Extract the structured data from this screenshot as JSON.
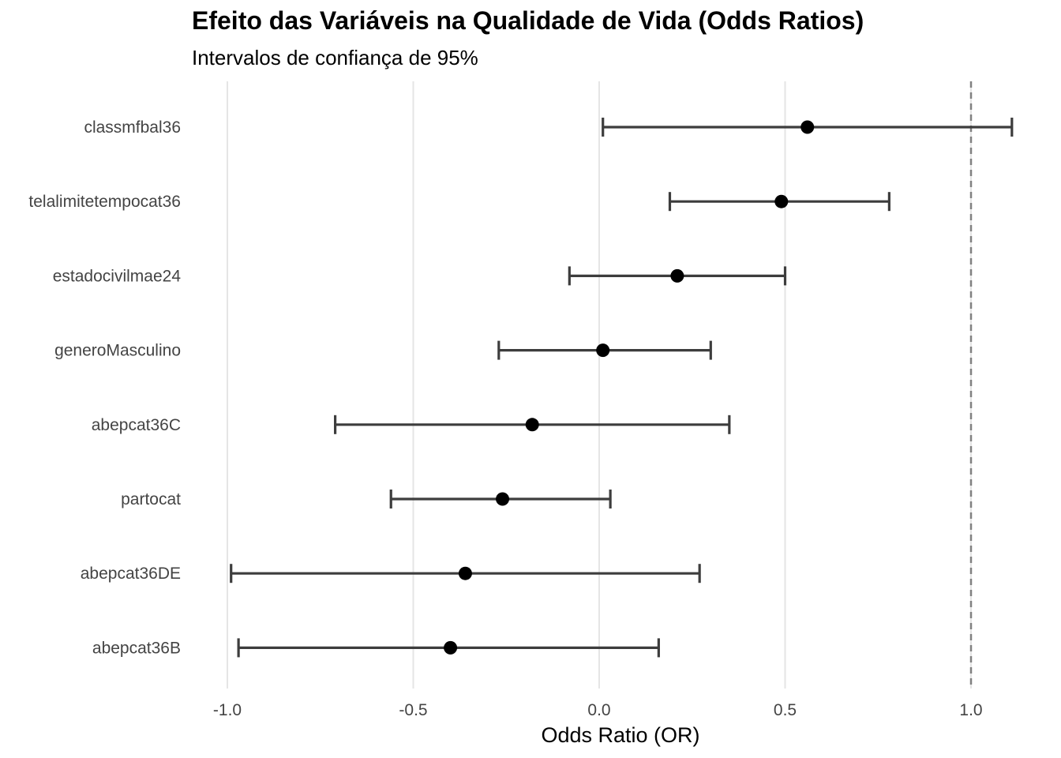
{
  "chart_data": {
    "type": "forest",
    "title": "Efeito das Variáveis na Qualidade de Vida (Odds Ratios)",
    "subtitle": "Intervalos de confiança de 95%",
    "xlabel": "Odds Ratio (OR)",
    "ylabel": "",
    "xlim": [
      -1.06,
      1.12
    ],
    "xticks": [
      -1.0,
      -0.5,
      0.0,
      0.5,
      1.0
    ],
    "xtick_labels": [
      "-1.0",
      "-0.5",
      "0.0",
      "0.5",
      "1.0"
    ],
    "reference_line": 1.0,
    "grid": "vertical major",
    "legend": "none",
    "rows": [
      {
        "label": "classmfbal36",
        "estimate": 0.56,
        "lower": 0.01,
        "upper": 1.11
      },
      {
        "label": "telalimitetempocat36",
        "estimate": 0.49,
        "lower": 0.19,
        "upper": 0.78
      },
      {
        "label": "estadocivilmae24",
        "estimate": 0.21,
        "lower": -0.08,
        "upper": 0.5
      },
      {
        "label": "generoMasculino",
        "estimate": 0.01,
        "lower": -0.27,
        "upper": 0.3
      },
      {
        "label": "abepcat36C",
        "estimate": -0.18,
        "lower": -0.71,
        "upper": 0.35
      },
      {
        "label": "partocat",
        "estimate": -0.26,
        "lower": -0.56,
        "upper": 0.03
      },
      {
        "label": "abepcat36DE",
        "estimate": -0.36,
        "lower": -0.99,
        "upper": 0.27
      },
      {
        "label": "abepcat36B",
        "estimate": -0.4,
        "lower": -0.97,
        "upper": 0.16
      }
    ],
    "colors": {
      "point": "#000000",
      "errorbar": "#3d3d3d",
      "grid": "#e5e5e5",
      "reference": "#808080"
    }
  }
}
